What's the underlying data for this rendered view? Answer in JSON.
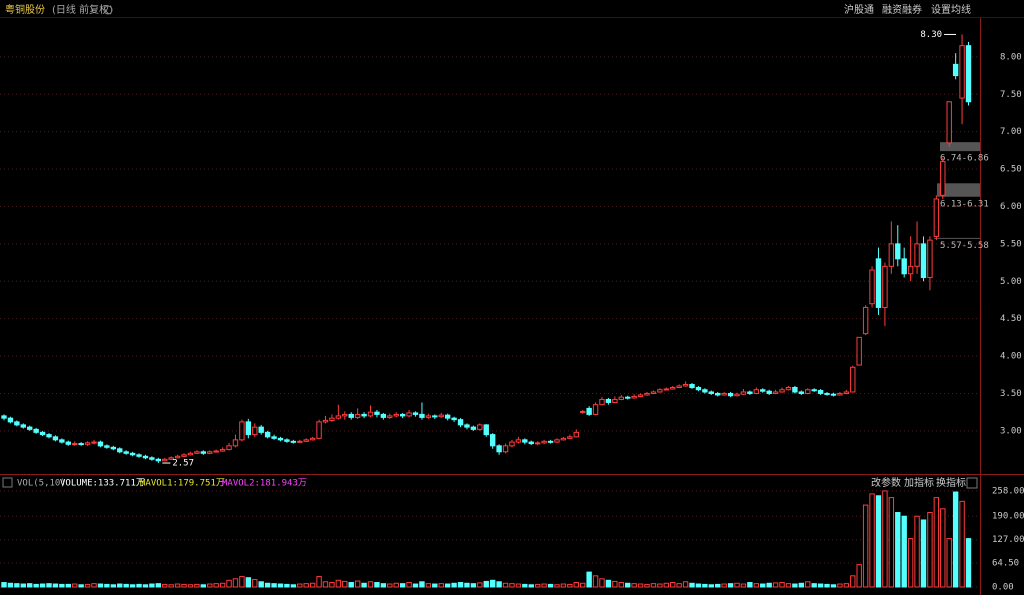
{
  "header": {
    "title": "粤铜股份",
    "mode": "(日线 前复权)",
    "tabs": [
      "沪股通",
      "融资融券",
      "设置均线"
    ]
  },
  "chart_data": {
    "type": "candlestick",
    "ylim": [
      2.45,
      8.52
    ],
    "yticks": [
      {
        "value": 3,
        "label": "3.00"
      },
      {
        "value": 3.5,
        "label": "3.50"
      },
      {
        "value": 4,
        "label": "4.00"
      },
      {
        "value": 4.5,
        "label": "4.50"
      },
      {
        "value": 5,
        "label": "5.00"
      },
      {
        "value": 5.5,
        "label": "5.50"
      },
      {
        "value": 6,
        "label": "6.00"
      },
      {
        "value": 6.5,
        "label": "6.50"
      },
      {
        "value": 7,
        "label": "7.00"
      },
      {
        "value": 7.5,
        "label": "7.50"
      },
      {
        "value": 8,
        "label": "8.00"
      }
    ],
    "up_color": "#ff3c3c",
    "down_color": "#54ffff",
    "grid": true,
    "candles": [
      [
        3.2,
        3.22,
        3.14,
        3.17
      ],
      [
        3.17,
        3.19,
        3.1,
        3.12
      ],
      [
        3.12,
        3.14,
        3.06,
        3.08
      ],
      [
        3.08,
        3.1,
        3.03,
        3.05
      ],
      [
        3.05,
        3.07,
        3.0,
        3.02
      ],
      [
        3.02,
        3.04,
        2.96,
        2.98
      ],
      [
        2.98,
        3.0,
        2.93,
        2.95
      ],
      [
        2.95,
        2.97,
        2.9,
        2.92
      ],
      [
        2.92,
        2.94,
        2.86,
        2.88
      ],
      [
        2.88,
        2.9,
        2.83,
        2.85
      ],
      [
        2.85,
        2.87,
        2.8,
        2.82
      ],
      [
        2.82,
        2.86,
        2.8,
        2.83
      ],
      [
        2.83,
        2.85,
        2.8,
        2.82
      ],
      [
        2.82,
        2.86,
        2.8,
        2.84
      ],
      [
        2.84,
        2.88,
        2.82,
        2.85
      ],
      [
        2.85,
        2.87,
        2.78,
        2.8
      ],
      [
        2.8,
        2.82,
        2.76,
        2.78
      ],
      [
        2.78,
        2.8,
        2.74,
        2.76
      ],
      [
        2.76,
        2.78,
        2.7,
        2.72
      ],
      [
        2.72,
        2.74,
        2.68,
        2.7
      ],
      [
        2.7,
        2.72,
        2.66,
        2.68
      ],
      [
        2.68,
        2.7,
        2.64,
        2.66
      ],
      [
        2.66,
        2.68,
        2.62,
        2.64
      ],
      [
        2.64,
        2.66,
        2.6,
        2.62
      ],
      [
        2.62,
        2.64,
        2.57,
        2.6
      ],
      [
        2.6,
        2.64,
        2.59,
        2.62
      ],
      [
        2.62,
        2.66,
        2.61,
        2.64
      ],
      [
        2.64,
        2.68,
        2.63,
        2.66
      ],
      [
        2.66,
        2.7,
        2.65,
        2.68
      ],
      [
        2.68,
        2.72,
        2.67,
        2.7
      ],
      [
        2.7,
        2.74,
        2.69,
        2.72
      ],
      [
        2.72,
        2.74,
        2.68,
        2.7
      ],
      [
        2.7,
        2.74,
        2.69,
        2.72
      ],
      [
        2.72,
        2.75,
        2.71,
        2.73
      ],
      [
        2.73,
        2.78,
        2.72,
        2.75
      ],
      [
        2.75,
        2.84,
        2.74,
        2.8
      ],
      [
        2.8,
        2.95,
        2.78,
        2.88
      ],
      [
        2.88,
        3.15,
        2.86,
        3.12
      ],
      [
        3.12,
        3.16,
        2.9,
        2.95
      ],
      [
        2.95,
        3.1,
        2.92,
        3.05
      ],
      [
        3.05,
        3.08,
        2.95,
        2.98
      ],
      [
        2.98,
        3.0,
        2.9,
        2.92
      ],
      [
        2.92,
        2.95,
        2.88,
        2.9
      ],
      [
        2.9,
        2.92,
        2.86,
        2.88
      ],
      [
        2.88,
        2.9,
        2.84,
        2.86
      ],
      [
        2.86,
        2.88,
        2.83,
        2.85
      ],
      [
        2.85,
        2.88,
        2.84,
        2.86
      ],
      [
        2.86,
        2.9,
        2.85,
        2.88
      ],
      [
        2.88,
        2.92,
        2.87,
        2.9
      ],
      [
        2.9,
        3.15,
        2.89,
        3.12
      ],
      [
        3.12,
        3.2,
        3.1,
        3.14
      ],
      [
        3.14,
        3.22,
        3.12,
        3.17
      ],
      [
        3.17,
        3.35,
        3.15,
        3.2
      ],
      [
        3.2,
        3.26,
        3.15,
        3.22
      ],
      [
        3.22,
        3.25,
        3.15,
        3.18
      ],
      [
        3.18,
        3.3,
        3.16,
        3.22
      ],
      [
        3.22,
        3.25,
        3.17,
        3.2
      ],
      [
        3.2,
        3.34,
        3.18,
        3.25
      ],
      [
        3.25,
        3.28,
        3.18,
        3.22
      ],
      [
        3.22,
        3.24,
        3.15,
        3.18
      ],
      [
        3.18,
        3.23,
        3.16,
        3.2
      ],
      [
        3.2,
        3.25,
        3.18,
        3.22
      ],
      [
        3.22,
        3.24,
        3.17,
        3.2
      ],
      [
        3.2,
        3.28,
        3.18,
        3.24
      ],
      [
        3.24,
        3.26,
        3.19,
        3.22
      ],
      [
        3.22,
        3.38,
        3.15,
        3.18
      ],
      [
        3.18,
        3.23,
        3.16,
        3.2
      ],
      [
        3.2,
        3.22,
        3.16,
        3.19
      ],
      [
        3.19,
        3.24,
        3.17,
        3.21
      ],
      [
        3.21,
        3.23,
        3.14,
        3.17
      ],
      [
        3.17,
        3.19,
        3.12,
        3.15
      ],
      [
        3.15,
        3.17,
        3.05,
        3.08
      ],
      [
        3.08,
        3.1,
        3.02,
        3.05
      ],
      [
        3.05,
        3.07,
        3.0,
        3.02
      ],
      [
        3.02,
        3.1,
        3.0,
        3.08
      ],
      [
        3.08,
        3.09,
        2.92,
        2.95
      ],
      [
        2.95,
        2.97,
        2.76,
        2.8
      ],
      [
        2.8,
        2.82,
        2.68,
        2.72
      ],
      [
        2.72,
        2.83,
        2.7,
        2.8
      ],
      [
        2.8,
        2.88,
        2.78,
        2.85
      ],
      [
        2.85,
        2.92,
        2.83,
        2.88
      ],
      [
        2.88,
        2.9,
        2.82,
        2.85
      ],
      [
        2.85,
        2.87,
        2.81,
        2.83
      ],
      [
        2.83,
        2.86,
        2.81,
        2.84
      ],
      [
        2.84,
        2.88,
        2.82,
        2.86
      ],
      [
        2.86,
        2.88,
        2.83,
        2.85
      ],
      [
        2.85,
        2.9,
        2.84,
        2.88
      ],
      [
        2.88,
        2.92,
        2.87,
        2.9
      ],
      [
        2.9,
        2.95,
        2.89,
        2.92
      ],
      [
        2.92,
        3.02,
        2.91,
        2.98
      ],
      [
        3.25,
        3.28,
        3.23,
        3.26
      ],
      [
        3.3,
        3.33,
        3.2,
        3.22
      ],
      [
        3.22,
        3.38,
        3.21,
        3.35
      ],
      [
        3.35,
        3.45,
        3.34,
        3.42
      ],
      [
        3.42,
        3.44,
        3.35,
        3.38
      ],
      [
        3.38,
        3.46,
        3.37,
        3.42
      ],
      [
        3.42,
        3.48,
        3.41,
        3.45
      ],
      [
        3.45,
        3.47,
        3.42,
        3.44
      ],
      [
        3.44,
        3.49,
        3.43,
        3.46
      ],
      [
        3.46,
        3.5,
        3.45,
        3.48
      ],
      [
        3.48,
        3.52,
        3.47,
        3.5
      ],
      [
        3.5,
        3.54,
        3.49,
        3.52
      ],
      [
        3.52,
        3.57,
        3.51,
        3.55
      ],
      [
        3.55,
        3.58,
        3.54,
        3.56
      ],
      [
        3.56,
        3.6,
        3.55,
        3.58
      ],
      [
        3.58,
        3.62,
        3.57,
        3.6
      ],
      [
        3.6,
        3.66,
        3.59,
        3.62
      ],
      [
        3.62,
        3.64,
        3.56,
        3.58
      ],
      [
        3.58,
        3.6,
        3.53,
        3.55
      ],
      [
        3.55,
        3.57,
        3.5,
        3.52
      ],
      [
        3.52,
        3.54,
        3.48,
        3.5
      ],
      [
        3.5,
        3.52,
        3.46,
        3.48
      ],
      [
        3.48,
        3.52,
        3.47,
        3.5
      ],
      [
        3.5,
        3.52,
        3.45,
        3.47
      ],
      [
        3.47,
        3.51,
        3.46,
        3.49
      ],
      [
        3.49,
        3.56,
        3.48,
        3.52
      ],
      [
        3.52,
        3.54,
        3.48,
        3.5
      ],
      [
        3.5,
        3.58,
        3.49,
        3.55
      ],
      [
        3.55,
        3.57,
        3.51,
        3.53
      ],
      [
        3.53,
        3.55,
        3.48,
        3.5
      ],
      [
        3.5,
        3.55,
        3.49,
        3.52
      ],
      [
        3.52,
        3.58,
        3.51,
        3.55
      ],
      [
        3.55,
        3.6,
        3.54,
        3.58
      ],
      [
        3.58,
        3.6,
        3.5,
        3.52
      ],
      [
        3.52,
        3.54,
        3.48,
        3.5
      ],
      [
        3.5,
        3.57,
        3.49,
        3.55
      ],
      [
        3.55,
        3.57,
        3.52,
        3.54
      ],
      [
        3.54,
        3.56,
        3.48,
        3.5
      ],
      [
        3.5,
        3.52,
        3.47,
        3.49
      ],
      [
        3.49,
        3.51,
        3.46,
        3.48
      ],
      [
        3.48,
        3.52,
        3.47,
        3.5
      ],
      [
        3.5,
        3.55,
        3.49,
        3.52
      ],
      [
        3.52,
        3.87,
        3.52,
        3.85
      ],
      [
        3.88,
        4.25,
        3.88,
        4.25
      ],
      [
        4.3,
        4.68,
        4.28,
        4.65
      ],
      [
        4.7,
        5.2,
        4.65,
        5.15
      ],
      [
        5.3,
        5.45,
        4.55,
        4.65
      ],
      [
        4.65,
        5.25,
        4.4,
        5.2
      ],
      [
        5.2,
        5.8,
        5.1,
        5.5
      ],
      [
        5.5,
        5.75,
        5.2,
        5.3
      ],
      [
        5.3,
        5.45,
        5.05,
        5.1
      ],
      [
        5.1,
        5.6,
        5.0,
        5.2
      ],
      [
        5.2,
        5.8,
        5.1,
        5.5
      ],
      [
        5.5,
        5.6,
        5.0,
        5.05
      ],
      [
        5.05,
        5.6,
        4.88,
        5.55
      ],
      [
        5.6,
        6.15,
        5.55,
        6.1
      ],
      [
        6.15,
        6.65,
        6.1,
        6.6
      ],
      [
        6.85,
        7.4,
        6.8,
        7.4
      ],
      [
        7.9,
        8.05,
        7.7,
        7.75
      ],
      [
        7.45,
        8.3,
        7.1,
        8.15
      ],
      [
        8.15,
        8.2,
        7.35,
        7.4
      ]
    ],
    "low_label": 2.57,
    "high_label": {
      "value": 8.3,
      "label": "8.30"
    },
    "gaps": [
      {
        "range": [
          6.74,
          6.86
        ],
        "label": "6.74-6.86"
      },
      {
        "range": [
          6.13,
          6.31
        ],
        "label": "6.13-6.31"
      },
      {
        "range": [
          5.57,
          5.58
        ],
        "label": "5.57-5.58"
      }
    ]
  },
  "volume": {
    "type": "bar",
    "indicator": "VOL(5,10)",
    "volume_text": "VOLUME:133.711万",
    "mavol1_text": "MAVOL1:179.751万",
    "mavol2_text": "MAVOL2:181.943万",
    "buttons": [
      "改参数",
      "加指标",
      "换指标"
    ],
    "ylim": [
      0,
      290
    ],
    "yticks": [
      {
        "value": 0,
        "label": "0.00"
      },
      {
        "value": 64.5,
        "label": "64.50"
      },
      {
        "value": 127,
        "label": "127.00"
      },
      {
        "value": 190,
        "label": "190.00"
      },
      {
        "value": 258,
        "label": "258.00"
      }
    ],
    "values": [
      12,
      10,
      9,
      8,
      9,
      7,
      8,
      9,
      8,
      7,
      7,
      8,
      6,
      7,
      9,
      8,
      7,
      6,
      8,
      7,
      6,
      7,
      6,
      8,
      9,
      7,
      6,
      8,
      7,
      6,
      7,
      6,
      8,
      9,
      10,
      18,
      22,
      28,
      25,
      20,
      14,
      10,
      9,
      8,
      7,
      6,
      8,
      9,
      10,
      28,
      14,
      12,
      18,
      15,
      12,
      16,
      10,
      14,
      12,
      9,
      8,
      10,
      9,
      12,
      8,
      14,
      9,
      8,
      9,
      8,
      10,
      12,
      10,
      9,
      11,
      15,
      18,
      14,
      10,
      9,
      8,
      7,
      6,
      7,
      8,
      7,
      6,
      8,
      7,
      12,
      10,
      40,
      30,
      22,
      18,
      15,
      12,
      10,
      9,
      8,
      7,
      9,
      8,
      10,
      12,
      9,
      14,
      10,
      8,
      7,
      6,
      7,
      8,
      9,
      10,
      8,
      12,
      9,
      8,
      10,
      11,
      12,
      9,
      8,
      10,
      14,
      9,
      8,
      7,
      6,
      8,
      9,
      30,
      60,
      220,
      250,
      245,
      258,
      240,
      200,
      190,
      130,
      190,
      180,
      200,
      240,
      210,
      130,
      255,
      230,
      130
    ]
  }
}
